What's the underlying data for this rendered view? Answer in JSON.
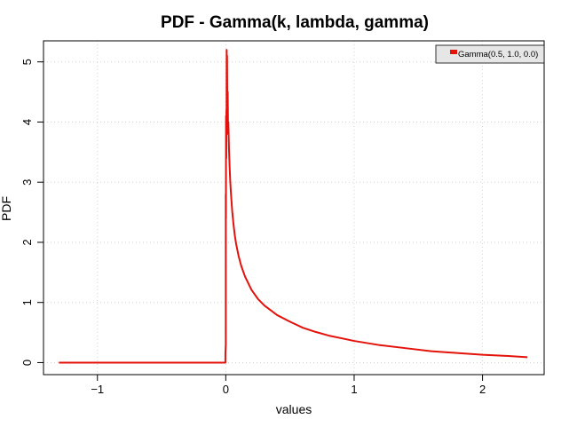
{
  "chart_data": {
    "type": "line",
    "title": "PDF - Gamma(k, lambda, gamma)",
    "xlabel": "values",
    "ylabel": "PDF",
    "xlim": [
      -1.42,
      2.48
    ],
    "ylim": [
      -0.2,
      5.35
    ],
    "xticks": [
      -1,
      0,
      1,
      2
    ],
    "xtick_labels": [
      "−1",
      "0",
      "1",
      "2"
    ],
    "yticks": [
      0,
      1,
      2,
      3,
      4,
      5
    ],
    "ytick_labels": [
      "0",
      "1",
      "2",
      "3",
      "4",
      "5"
    ],
    "grid": true,
    "legend_position": "top-right",
    "series": [
      {
        "name": "Gamma(0.5, 1.0, 0.0)",
        "color": "#e3120b",
        "x": [
          -1.3,
          -0.8,
          -0.3,
          -0.02,
          -0.003,
          -0.003,
          0.0,
          0.0,
          0.001,
          0.002,
          0.003,
          0.004,
          0.005,
          0.006,
          0.007,
          0.008,
          0.009,
          0.01,
          0.012,
          0.015,
          0.018,
          0.02,
          0.025,
          0.03,
          0.035,
          0.04,
          0.05,
          0.06,
          0.07,
          0.08,
          0.1,
          0.12,
          0.15,
          0.2,
          0.25,
          0.3,
          0.4,
          0.5,
          0.6,
          0.7,
          0.8,
          1.0,
          1.2,
          1.4,
          1.6,
          1.8,
          2.0,
          2.2,
          2.35
        ],
        "y": [
          0,
          0,
          0,
          0,
          0,
          0.15,
          0.3,
          2.8,
          2.4,
          4.1,
          3.7,
          3.4,
          4.2,
          3.9,
          5.2,
          4.8,
          4.6,
          5.1,
          4.2,
          4.5,
          3.8,
          4.0,
          3.55,
          3.25,
          3.0,
          2.82,
          2.52,
          2.3,
          2.12,
          1.98,
          1.77,
          1.61,
          1.43,
          1.21,
          1.06,
          0.95,
          0.79,
          0.68,
          0.58,
          0.51,
          0.45,
          0.36,
          0.29,
          0.24,
          0.19,
          0.16,
          0.13,
          0.11,
          0.09
        ]
      }
    ]
  }
}
